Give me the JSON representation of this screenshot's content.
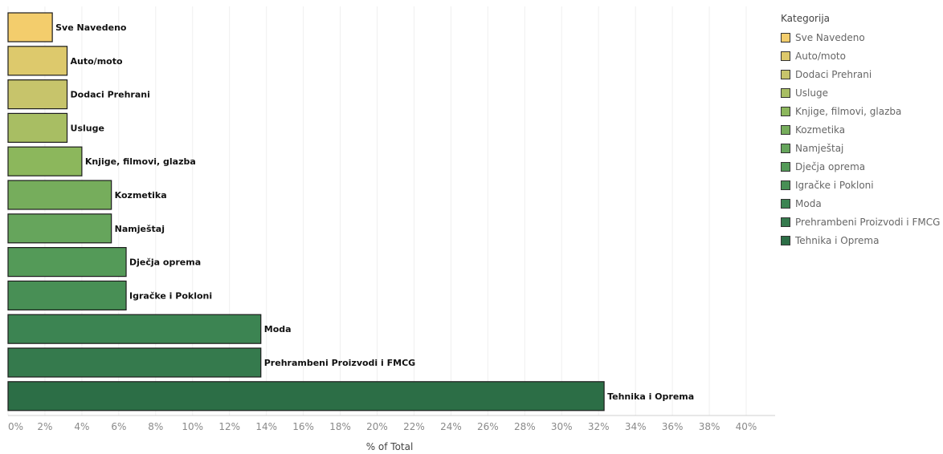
{
  "chart_data": {
    "type": "bar",
    "orientation": "horizontal",
    "categories": [
      "Sve Navedeno",
      "Auto/moto",
      "Dodaci Prehrani",
      "Usluge",
      "Knjige, filmovi, glazba",
      "Kozmetika",
      "Namještaj",
      "Dječja oprema",
      "Igračke i Pokloni",
      "Moda",
      "Prehrambeni Proizvodi i FMCG",
      "Tehnika i Oprema"
    ],
    "values": [
      2.4,
      3.2,
      3.2,
      3.2,
      4.0,
      5.6,
      5.6,
      6.4,
      6.4,
      13.7,
      13.7,
      32.3
    ],
    "colors": [
      "#f3cd6c",
      "#ddc96c",
      "#c7c46b",
      "#a8be63",
      "#8cb75c",
      "#76ad5c",
      "#66a55c",
      "#549a58",
      "#488f55",
      "#3c8452",
      "#357a4d",
      "#2c6e46"
    ],
    "xlabel": "% of Total",
    "ylabel": "",
    "xlim": [
      0,
      40
    ],
    "xticks": [
      "0%",
      "2%",
      "4%",
      "6%",
      "8%",
      "10%",
      "12%",
      "14%",
      "16%",
      "18%",
      "20%",
      "22%",
      "24%",
      "26%",
      "28%",
      "30%",
      "32%",
      "34%",
      "36%",
      "38%",
      "40%"
    ],
    "grid": "vertical",
    "legend": {
      "title": "Kategorija",
      "position": "right",
      "entries": [
        "Sve Navedeno",
        "Auto/moto",
        "Dodaci Prehrani",
        "Usluge",
        "Knjige, filmovi, glazba",
        "Kozmetika",
        "Namještaj",
        "Dječja oprema",
        "Igračke i Pokloni",
        "Moda",
        "Prehrambeni Proizvodi i FMCG",
        "Tehnika i Oprema"
      ]
    }
  }
}
